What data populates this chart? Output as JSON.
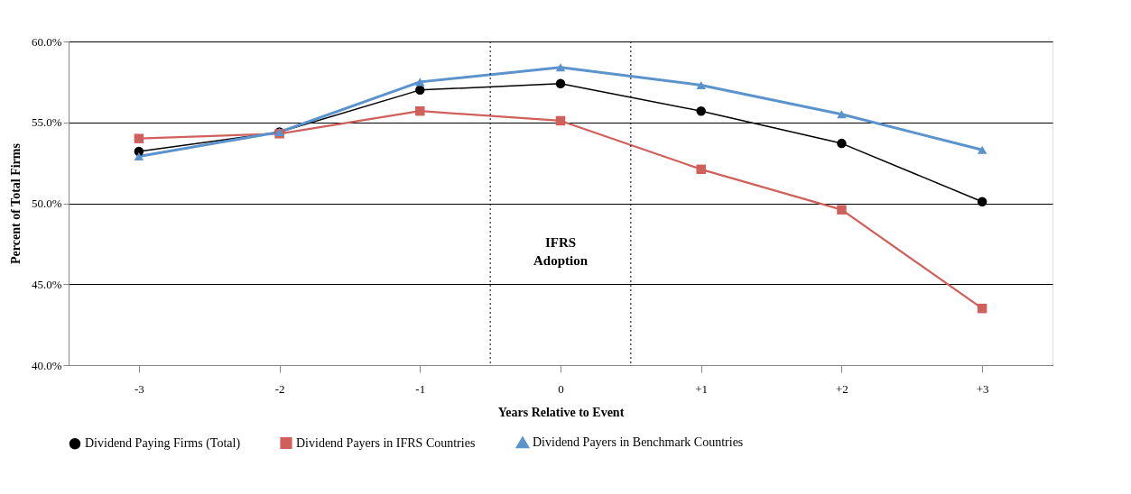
{
  "chart_data": {
    "type": "line",
    "xlabel": "Years Relative to Event",
    "ylabel": "Percent of Total Firms",
    "x": [
      -3,
      -2,
      -1,
      0,
      1,
      2,
      3
    ],
    "xlim": [
      -3.5,
      3.5
    ],
    "xticks": [
      -3,
      -2,
      -1,
      0,
      {
        "value": 1,
        "label": "+1"
      },
      {
        "value": 2,
        "label": "+2"
      },
      {
        "value": 3,
        "label": "+3"
      }
    ],
    "ylim": [
      40,
      60
    ],
    "yticks": [
      {
        "value": 40,
        "label": "40.0%"
      },
      {
        "value": 45,
        "label": "45.0%"
      },
      {
        "value": 50,
        "label": "50.0%"
      },
      {
        "value": 55,
        "label": "55.0%"
      },
      {
        "value": 60,
        "label": "60.0%"
      }
    ],
    "grid": "y",
    "legend": "bottom",
    "series": [
      {
        "name": "Dividend Paying Firms (Total)",
        "color": "#000000",
        "marker": "circle",
        "values": [
          53.2,
          54.4,
          57.0,
          57.4,
          55.7,
          53.7,
          50.1
        ]
      },
      {
        "name": "Dividend Payers in IFRS Countries",
        "color": "#d0605b",
        "marker": "square",
        "values": [
          54.0,
          54.3,
          55.7,
          55.1,
          52.1,
          49.6,
          43.5
        ]
      },
      {
        "name": "Dividend Payers in Benchmark Countries",
        "color": "#5b93cc",
        "marker": "triangle",
        "values": [
          52.9,
          54.4,
          57.5,
          58.4,
          57.3,
          55.5,
          53.3
        ]
      }
    ],
    "ref_lines": [
      {
        "axis": "x",
        "value": -0.5,
        "line_style": "dotted",
        "color": "#000000"
      },
      {
        "axis": "x",
        "value": 0.5,
        "line_style": "dotted",
        "color": "#000000"
      }
    ],
    "annotations": [
      "IFRS\nAdoption"
    ]
  }
}
